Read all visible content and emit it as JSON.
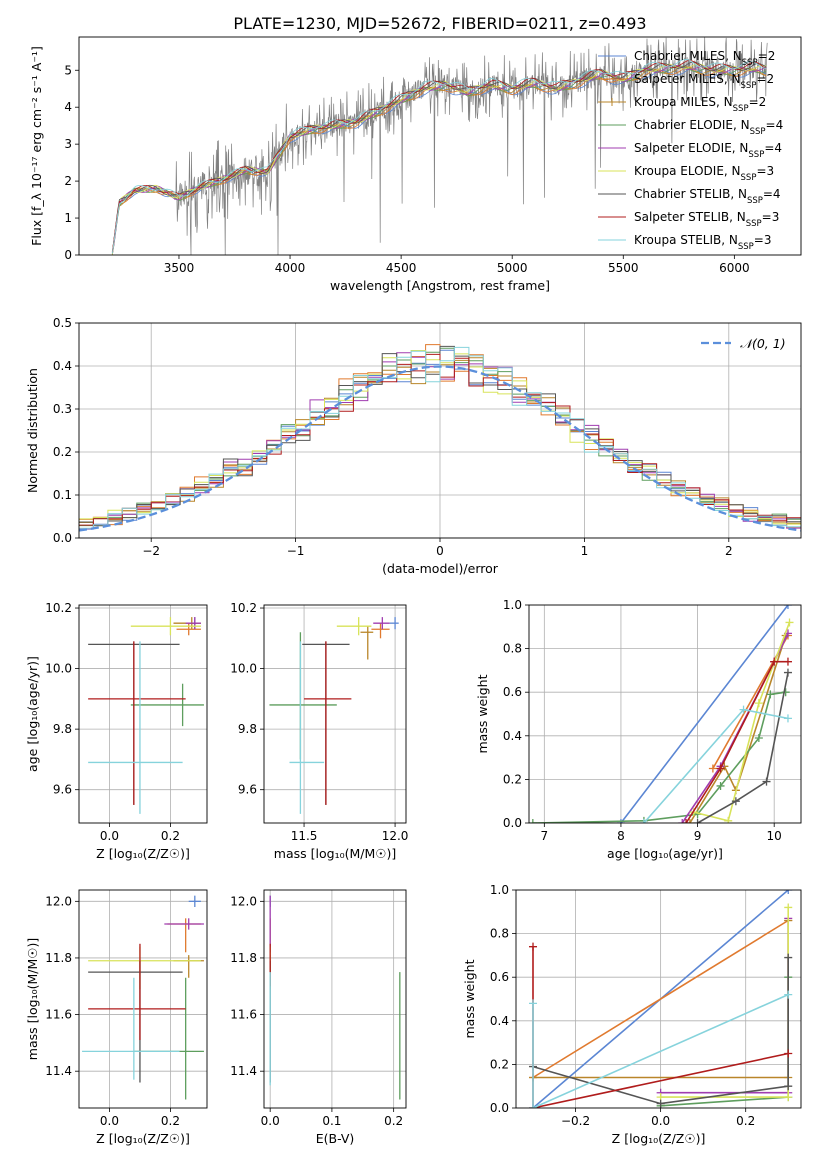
{
  "title": "PLATE=1230, MJD=52672, FIBERID=0211, z=0.493",
  "colors": {
    "Chabrier MILES": "#5b86d3",
    "Salpeter MILES": "#e07a2f",
    "Kroupa MILES": "#b9862a",
    "Chabrier ELODIE": "#5e9e5e",
    "Salpeter ELODIE": "#a03db0",
    "Kroupa ELODIE": "#d8e35a",
    "Chabrier STELIB": "#555555",
    "Salpeter STELIB": "#b01c1c",
    "Kroupa STELIB": "#86d3dc",
    "normal": "#5b8fdb",
    "spectrum": "#808080"
  },
  "chart_data": [
    {
      "type": "line",
      "xlabel": "wavelength [Angstrom, rest frame]",
      "ylabel": "Flux [f_λ 10⁻¹⁷ erg cm⁻² s⁻¹ A⁻¹]",
      "xlim": [
        3050,
        6300
      ],
      "ylim": [
        0,
        5.9
      ],
      "xticks": [
        3500,
        4000,
        4500,
        5000,
        5500,
        6000
      ],
      "yticks": [
        0,
        1,
        2,
        3,
        4,
        5
      ],
      "grid": false,
      "legend_position": "top-right",
      "legend": [
        "Chabrier MILES, N_SSP=2",
        "Salpeter MILES, N_SSP=2",
        "Kroupa MILES, N_SSP=2",
        "Chabrier ELODIE, N_SSP=4",
        "Salpeter ELODIE, N_SSP=4",
        "Kroupa ELODIE, N_SSP=3",
        "Chabrier STELIB, N_SSP=4",
        "Salpeter STELIB, N_SSP=3",
        "Kroupa STELIB, N_SSP=3"
      ],
      "continuum": {
        "x": [
          3200,
          3230,
          3300,
          3400,
          3500,
          3600,
          3700,
          3800,
          3900,
          4000,
          4100,
          4200,
          4300,
          4400,
          4500,
          4600,
          4700,
          4800,
          4900,
          5000,
          5100,
          5200,
          5300,
          5400,
          5500,
          5600,
          5700,
          5800,
          5900,
          6000,
          6100,
          6150
        ],
        "y": [
          0,
          1.4,
          1.75,
          1.8,
          1.55,
          1.85,
          2.05,
          2.3,
          2.25,
          3.2,
          3.4,
          3.5,
          3.6,
          3.9,
          4.2,
          4.5,
          4.6,
          4.4,
          4.6,
          4.5,
          4.65,
          4.5,
          4.7,
          4.9,
          4.75,
          5.0,
          5.05,
          5.1,
          5.0,
          5.0,
          5.05,
          5.0
        ]
      }
    },
    {
      "type": "line",
      "xlabel": "(data-model)/error",
      "ylabel": "Normed distribution",
      "xlim": [
        -2.5,
        2.5
      ],
      "ylim": [
        0,
        0.5
      ],
      "xticks": [
        -2,
        -1,
        0,
        1,
        2
      ],
      "yticks": [
        0.0,
        0.1,
        0.2,
        0.3,
        0.4,
        0.5
      ],
      "grid": true,
      "legend_position": "top-right",
      "normal_label": "𝒩(0, 1)",
      "hist_bins": 50
    },
    {
      "type": "scatter",
      "xlabel": "Z [log₁₀(Z/Z☉)]",
      "ylabel": "age  [log₁₀(age/yr)]",
      "xlim": [
        -0.1,
        0.32
      ],
      "ylim": [
        9.49,
        10.21
      ],
      "xticks": [
        0.0,
        0.2
      ],
      "yticks": [
        9.6,
        9.8,
        10.0,
        10.2
      ],
      "grid": true,
      "points": [
        {
          "model": "Chabrier MILES",
          "x": 0.28,
          "y": 10.15,
          "xerr": [
            0.02,
            0.02
          ],
          "yerr": [
            0.02,
            0.02
          ]
        },
        {
          "model": "Salpeter MILES",
          "x": 0.26,
          "y": 10.13,
          "xerr": [
            0.04,
            0.04
          ],
          "yerr": [
            0.02,
            0.02
          ]
        },
        {
          "model": "Kroupa MILES",
          "x": 0.27,
          "y": 10.15,
          "xerr": [
            0.06,
            0.03
          ],
          "yerr": [
            0.02,
            0.02
          ]
        },
        {
          "model": "Chabrier ELODIE",
          "x": 0.24,
          "y": 9.88,
          "xerr": [
            0.17,
            0.07
          ],
          "yerr": [
            0.07,
            0.07
          ]
        },
        {
          "model": "Salpeter ELODIE",
          "x": 0.28,
          "y": 10.15,
          "xerr": [
            0.03,
            0.02
          ],
          "yerr": [
            0.02,
            0.02
          ]
        },
        {
          "model": "Kroupa ELODIE",
          "x": 0.2,
          "y": 10.14,
          "xerr": [
            0.13,
            0.1
          ],
          "yerr": [
            0.03,
            0.03
          ]
        },
        {
          "model": "Chabrier STELIB",
          "x": 0.08,
          "y": 10.08,
          "xerr": [
            0.15,
            0.15
          ],
          "yerr": [
            0.53,
            0.01
          ]
        },
        {
          "model": "Salpeter STELIB",
          "x": 0.08,
          "y": 9.9,
          "xerr": [
            0.15,
            0.17
          ],
          "yerr": [
            0.35,
            0.19
          ]
        },
        {
          "model": "Kroupa STELIB",
          "x": 0.1,
          "y": 9.69,
          "xerr": [
            0.17,
            0.14
          ],
          "yerr": [
            0.17,
            0.4
          ]
        }
      ]
    },
    {
      "type": "scatter",
      "xlabel": "mass [log₁₀(M/M☉)]",
      "ylabel": "",
      "xlim": [
        11.28,
        12.06
      ],
      "ylim": [
        9.49,
        10.21
      ],
      "xticks": [
        11.5,
        12.0
      ],
      "yticks": [
        9.6,
        9.8,
        10.0,
        10.2
      ],
      "grid": true,
      "points": [
        {
          "model": "Chabrier MILES",
          "x": 12.0,
          "y": 10.15,
          "xerr": [
            0.03,
            0.02
          ],
          "yerr": [
            0.02,
            0.02
          ]
        },
        {
          "model": "Salpeter MILES",
          "x": 11.92,
          "y": 10.13,
          "xerr": [
            0.05,
            0.05
          ],
          "yerr": [
            0.03,
            0.02
          ]
        },
        {
          "model": "Kroupa MILES",
          "x": 11.85,
          "y": 10.12,
          "xerr": [
            0.04,
            0.03
          ],
          "yerr": [
            0.09,
            0.02
          ]
        },
        {
          "model": "Chabrier ELODIE",
          "x": 11.48,
          "y": 9.88,
          "xerr": [
            0.17,
            0.2
          ],
          "yerr": [
            0.18,
            0.24
          ]
        },
        {
          "model": "Salpeter ELODIE",
          "x": 11.93,
          "y": 10.15,
          "xerr": [
            0.05,
            0.04
          ],
          "yerr": [
            0.02,
            0.02
          ]
        },
        {
          "model": "Kroupa ELODIE",
          "x": 11.8,
          "y": 10.14,
          "xerr": [
            0.12,
            0.07
          ],
          "yerr": [
            0.03,
            0.03
          ]
        },
        {
          "model": "Chabrier STELIB",
          "x": 11.62,
          "y": 10.08,
          "xerr": [
            0.13,
            0.13
          ],
          "yerr": [
            0.53,
            0.01
          ]
        },
        {
          "model": "Salpeter STELIB",
          "x": 11.62,
          "y": 9.9,
          "xerr": [
            0.12,
            0.14
          ],
          "yerr": [
            0.35,
            0.19
          ]
        },
        {
          "model": "Kroupa STELIB",
          "x": 11.48,
          "y": 9.69,
          "xerr": [
            0.06,
            0.13
          ],
          "yerr": [
            0.17,
            0.4
          ]
        }
      ]
    },
    {
      "type": "line",
      "xlabel": "age  [log₁₀(age/yr)]",
      "ylabel": "mass weight",
      "xlim": [
        6.8,
        10.35
      ],
      "ylim": [
        0,
        1.0
      ],
      "xticks": [
        7,
        8,
        9,
        10
      ],
      "yticks": [
        0.0,
        0.2,
        0.4,
        0.6,
        0.8,
        1.0
      ],
      "grid": true,
      "series": [
        {
          "model": "Chabrier MILES",
          "x": [
            8.0,
            10.18
          ],
          "y": [
            0.0,
            1.0
          ]
        },
        {
          "model": "Salpeter MILES",
          "x": [
            9.2,
            10.18
          ],
          "y": [
            0.25,
            0.86
          ]
        },
        {
          "model": "Kroupa MILES",
          "x": [
            8.9,
            9.35,
            9.5,
            10.15
          ],
          "y": [
            0.0,
            0.26,
            0.15,
            0.86
          ]
        },
        {
          "model": "Chabrier ELODIE",
          "x": [
            6.85,
            8.3,
            9.0,
            9.3,
            9.8,
            9.95,
            10.15
          ],
          "y": [
            0.0,
            0.01,
            0.04,
            0.17,
            0.39,
            0.59,
            0.6
          ]
        },
        {
          "model": "Salpeter ELODIE",
          "x": [
            8.8,
            9.3,
            10.0,
            10.18
          ],
          "y": [
            0.0,
            0.26,
            0.74,
            0.87
          ]
        },
        {
          "model": "Kroupa ELODIE",
          "x": [
            8.95,
            9.4,
            9.8,
            10.2
          ],
          "y": [
            0.05,
            0.01,
            0.55,
            0.92
          ]
        },
        {
          "model": "Chabrier STELIB",
          "x": [
            9.0,
            9.5,
            9.9,
            10.18
          ],
          "y": [
            0.0,
            0.1,
            0.19,
            0.69
          ]
        },
        {
          "model": "Salpeter STELIB",
          "x": [
            8.85,
            9.3,
            10.0,
            10.18
          ],
          "y": [
            0.0,
            0.25,
            0.74,
            0.74
          ]
        },
        {
          "model": "Kroupa STELIB",
          "x": [
            8.3,
            9.6,
            10.18
          ],
          "y": [
            0.0,
            0.52,
            0.48
          ]
        }
      ]
    },
    {
      "type": "scatter",
      "xlabel": "Z [log₁₀(Z/Z☉)]",
      "ylabel": "mass [log₁₀(M/M☉)]",
      "xlim": [
        -0.1,
        0.32
      ],
      "ylim": [
        11.27,
        12.04
      ],
      "xticks": [
        0.0,
        0.2
      ],
      "yticks": [
        11.4,
        11.6,
        11.8,
        12.0
      ],
      "grid": true,
      "points": [
        {
          "model": "Chabrier MILES",
          "x": 0.28,
          "y": 12.0,
          "xerr": [
            0.02,
            0.02
          ],
          "yerr": [
            0.02,
            0.02
          ]
        },
        {
          "model": "Salpeter MILES",
          "x": 0.25,
          "y": 11.92,
          "xerr": [
            0.06,
            0.05
          ],
          "yerr": [
            0.1,
            0.02
          ]
        },
        {
          "model": "Kroupa MILES",
          "x": 0.26,
          "y": 11.79,
          "xerr": [
            0.05,
            0.05
          ],
          "yerr": [
            0.06,
            0.02
          ]
        },
        {
          "model": "Chabrier ELODIE",
          "x": 0.25,
          "y": 11.47,
          "xerr": [
            0.17,
            0.06
          ],
          "yerr": [
            0.17,
            0.26
          ]
        },
        {
          "model": "Salpeter ELODIE",
          "x": 0.26,
          "y": 11.92,
          "xerr": [
            0.08,
            0.05
          ],
          "yerr": [
            0.02,
            0.02
          ]
        },
        {
          "model": "Kroupa ELODIE",
          "x": 0.1,
          "y": 11.79,
          "xerr": [
            0.17,
            0.2
          ],
          "yerr": [
            0.1,
            0.05
          ]
        },
        {
          "model": "Chabrier STELIB",
          "x": 0.1,
          "y": 11.75,
          "xerr": [
            0.17,
            0.14
          ],
          "yerr": [
            0.39,
            0.04
          ]
        },
        {
          "model": "Salpeter STELIB",
          "x": 0.1,
          "y": 11.62,
          "xerr": [
            0.17,
            0.15
          ],
          "yerr": [
            0.11,
            0.23
          ]
        },
        {
          "model": "Kroupa STELIB",
          "x": 0.08,
          "y": 11.47,
          "xerr": [
            0.17,
            0.15
          ],
          "yerr": [
            0.1,
            0.26
          ]
        }
      ]
    },
    {
      "type": "scatter",
      "xlabel": "E(B-V)",
      "ylabel": "",
      "xlim": [
        -0.01,
        0.22
      ],
      "ylim": [
        11.27,
        12.04
      ],
      "xticks": [
        0.0,
        0.1,
        0.2
      ],
      "yticks": [
        11.4,
        11.6,
        11.8,
        12.0
      ],
      "grid": true,
      "points": [
        {
          "model": "Chabrier MILES",
          "x": 0.0,
          "y": 12.0,
          "yerr": [
            0.02,
            0.02
          ]
        },
        {
          "model": "Salpeter MILES",
          "x": 0.0,
          "y": 11.92,
          "yerr": [
            0.1,
            0.02
          ]
        },
        {
          "model": "Kroupa MILES",
          "x": 0.0,
          "y": 11.79,
          "yerr": [
            0.06,
            0.02
          ]
        },
        {
          "model": "Chabrier ELODIE",
          "x": 0.21,
          "y": 11.47,
          "yerr": [
            0.17,
            0.28
          ]
        },
        {
          "model": "Salpeter ELODIE",
          "x": 0.0,
          "y": 11.92,
          "yerr": [
            0.1,
            0.1
          ]
        },
        {
          "model": "Kroupa ELODIE",
          "x": 0.0,
          "y": 11.79,
          "yerr": [
            0.1,
            0.05
          ]
        },
        {
          "model": "Chabrier STELIB",
          "x": 0.0,
          "y": 11.75,
          "yerr": [
            0.39,
            0.04
          ]
        },
        {
          "model": "Salpeter STELIB",
          "x": 0.0,
          "y": 11.75,
          "yerr": [
            0.05,
            0.1
          ]
        },
        {
          "model": "Kroupa STELIB",
          "x": 0.0,
          "y": 11.55,
          "yerr": [
            0.2,
            0.2
          ]
        }
      ]
    },
    {
      "type": "line",
      "xlabel": "Z [log₁₀(Z/Z☉)]",
      "ylabel": "mass weight",
      "xlim": [
        -0.34,
        0.33
      ],
      "ylim": [
        0,
        1.0
      ],
      "xticks": [
        -0.2,
        0.0,
        0.2
      ],
      "yticks": [
        0.0,
        0.2,
        0.4,
        0.6,
        0.8,
        1.0
      ],
      "grid": true,
      "series": [
        {
          "model": "Chabrier MILES",
          "x": [
            -0.3,
            0.3
          ],
          "y": [
            0.0,
            1.0
          ]
        },
        {
          "model": "Salpeter MILES",
          "x": [
            -0.3,
            0.3
          ],
          "y": [
            0.14,
            0.86
          ]
        },
        {
          "model": "Kroupa MILES",
          "x": [
            -0.3,
            0.3,
            0.3
          ],
          "y": [
            0.14,
            0.14,
            0.86
          ]
        },
        {
          "model": "Chabrier ELODIE",
          "x": [
            0.0,
            0.3,
            0.3
          ],
          "y": [
            0.01,
            0.05,
            0.6
          ]
        },
        {
          "model": "Salpeter ELODIE",
          "x": [
            0.0,
            0.3,
            0.3
          ],
          "y": [
            0.07,
            0.07,
            0.87
          ]
        },
        {
          "model": "Kroupa ELODIE",
          "x": [
            0.0,
            0.3,
            0.3
          ],
          "y": [
            0.05,
            0.05,
            0.92
          ]
        },
        {
          "model": "Chabrier STELIB",
          "x": [
            -0.3,
            0.0,
            0.3,
            0.3
          ],
          "y": [
            0.19,
            0.02,
            0.1,
            0.69
          ]
        },
        {
          "model": "Salpeter STELIB",
          "x": [
            -0.3,
            -0.3,
            0.3
          ],
          "y": [
            0.74,
            0.0,
            0.25
          ]
        },
        {
          "model": "Kroupa STELIB",
          "x": [
            -0.3,
            -0.3,
            0.3
          ],
          "y": [
            0.48,
            0.0,
            0.52
          ]
        }
      ]
    }
  ]
}
